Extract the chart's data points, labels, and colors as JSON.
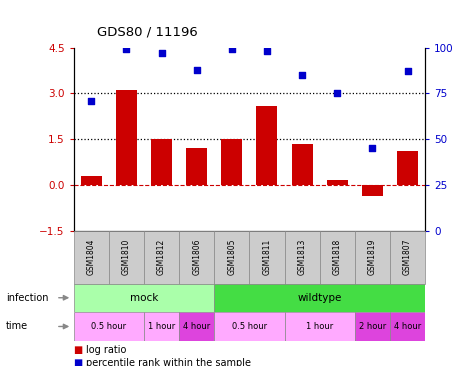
{
  "title": "GDS80 / 11196",
  "samples": [
    "GSM1804",
    "GSM1810",
    "GSM1812",
    "GSM1806",
    "GSM1805",
    "GSM1811",
    "GSM1813",
    "GSM1818",
    "GSM1819",
    "GSM1807"
  ],
  "log_ratio": [
    0.3,
    3.1,
    1.5,
    1.2,
    1.5,
    2.6,
    1.35,
    0.15,
    -0.35,
    1.1
  ],
  "percentile": [
    71,
    99,
    97,
    88,
    99,
    98,
    85,
    75,
    45,
    87
  ],
  "ylim_left": [
    -1.5,
    4.5
  ],
  "ylim_right": [
    0,
    100
  ],
  "yticks_left": [
    -1.5,
    0.0,
    1.5,
    3.0,
    4.5
  ],
  "yticks_right": [
    0,
    25,
    50,
    75,
    100
  ],
  "hlines_dotted": [
    1.5,
    3.0
  ],
  "hline_dashed": 0.0,
  "bar_color": "#cc0000",
  "dot_color": "#0000cc",
  "zero_line_color": "#cc0000",
  "infection_groups": [
    {
      "label": "mock",
      "start": 0,
      "end": 4,
      "color": "#aaffaa"
    },
    {
      "label": "wildtype",
      "start": 4,
      "end": 10,
      "color": "#44dd44"
    }
  ],
  "time_groups": [
    {
      "label": "0.5 hour",
      "start": 0,
      "end": 2,
      "color": "#ffaaff"
    },
    {
      "label": "1 hour",
      "start": 2,
      "end": 3,
      "color": "#ffaaff"
    },
    {
      "label": "4 hour",
      "start": 3,
      "end": 4,
      "color": "#dd44dd"
    },
    {
      "label": "0.5 hour",
      "start": 4,
      "end": 6,
      "color": "#ffaaff"
    },
    {
      "label": "1 hour",
      "start": 6,
      "end": 8,
      "color": "#ffaaff"
    },
    {
      "label": "2 hour",
      "start": 8,
      "end": 9,
      "color": "#dd44dd"
    },
    {
      "label": "4 hour",
      "start": 9,
      "end": 10,
      "color": "#dd44dd"
    }
  ],
  "sample_box_color": "#cccccc",
  "arrow_color": "#888888"
}
